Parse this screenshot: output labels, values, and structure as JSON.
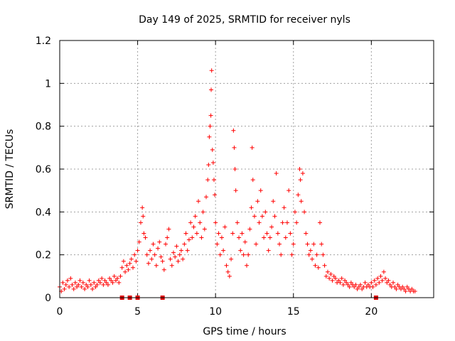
{
  "chart_data": {
    "type": "scatter",
    "title": "Day 149 of 2025, SRMTID for receiver nyls",
    "xlabel": "GPS time / hours",
    "ylabel": "SRMTID / TECUs",
    "xlim": [
      0,
      24
    ],
    "ylim": [
      0,
      1.2
    ],
    "xticks": [
      0,
      5,
      10,
      15,
      20
    ],
    "xtick_labels": [
      "0",
      "5",
      "10",
      "15",
      "20"
    ],
    "yticks": [
      0,
      0.2,
      0.4,
      0.6,
      0.8,
      1.0,
      1.2
    ],
    "ytick_labels": [
      "0",
      "0.2",
      "0.4",
      "0.6",
      "0.8",
      "1",
      "1.2"
    ],
    "grid": true,
    "marker": "plus",
    "color": "#ff0000",
    "series": [
      {
        "name": "SRMTID",
        "points": [
          [
            0.0,
            0.05
          ],
          [
            0.1,
            0.03
          ],
          [
            0.2,
            0.07
          ],
          [
            0.3,
            0.04
          ],
          [
            0.4,
            0.06
          ],
          [
            0.5,
            0.08
          ],
          [
            0.6,
            0.05
          ],
          [
            0.7,
            0.09
          ],
          [
            0.8,
            0.06
          ],
          [
            0.9,
            0.04
          ],
          [
            1.0,
            0.07
          ],
          [
            1.1,
            0.05
          ],
          [
            1.2,
            0.06
          ],
          [
            1.3,
            0.08
          ],
          [
            1.4,
            0.05
          ],
          [
            1.5,
            0.07
          ],
          [
            1.6,
            0.04
          ],
          [
            1.7,
            0.06
          ],
          [
            1.8,
            0.05
          ],
          [
            1.9,
            0.08
          ],
          [
            2.0,
            0.06
          ],
          [
            2.1,
            0.04
          ],
          [
            2.2,
            0.07
          ],
          [
            2.3,
            0.05
          ],
          [
            2.4,
            0.06
          ],
          [
            2.5,
            0.08
          ],
          [
            2.6,
            0.07
          ],
          [
            2.7,
            0.09
          ],
          [
            2.8,
            0.06
          ],
          [
            2.9,
            0.08
          ],
          [
            3.0,
            0.07
          ],
          [
            3.1,
            0.06
          ],
          [
            3.2,
            0.09
          ],
          [
            3.3,
            0.08
          ],
          [
            3.4,
            0.07
          ],
          [
            3.5,
            0.1
          ],
          [
            3.6,
            0.08
          ],
          [
            3.7,
            0.09
          ],
          [
            3.8,
            0.07
          ],
          [
            3.9,
            0.1
          ],
          [
            4.0,
            0.14
          ],
          [
            4.1,
            0.17
          ],
          [
            4.2,
            0.12
          ],
          [
            4.3,
            0.15
          ],
          [
            4.4,
            0.13
          ],
          [
            4.5,
            0.16
          ],
          [
            4.6,
            0.18
          ],
          [
            4.7,
            0.14
          ],
          [
            4.8,
            0.2
          ],
          [
            4.9,
            0.17
          ],
          [
            5.0,
            0.22
          ],
          [
            5.1,
            0.26
          ],
          [
            5.2,
            0.35
          ],
          [
            5.3,
            0.42
          ],
          [
            5.35,
            0.38
          ],
          [
            5.4,
            0.3
          ],
          [
            5.5,
            0.28
          ],
          [
            5.6,
            0.2
          ],
          [
            5.7,
            0.16
          ],
          [
            5.8,
            0.22
          ],
          [
            5.9,
            0.18
          ],
          [
            6.0,
            0.25
          ],
          [
            6.1,
            0.2
          ],
          [
            6.2,
            0.15
          ],
          [
            6.3,
            0.23
          ],
          [
            6.4,
            0.26
          ],
          [
            6.5,
            0.19
          ],
          [
            6.6,
            0.17
          ],
          [
            6.7,
            0.13
          ],
          [
            6.8,
            0.25
          ],
          [
            6.9,
            0.28
          ],
          [
            7.0,
            0.32
          ],
          [
            7.1,
            0.18
          ],
          [
            7.2,
            0.15
          ],
          [
            7.3,
            0.21
          ],
          [
            7.4,
            0.19
          ],
          [
            7.5,
            0.24
          ],
          [
            7.6,
            0.17
          ],
          [
            7.7,
            0.2
          ],
          [
            7.8,
            0.22
          ],
          [
            7.9,
            0.18
          ],
          [
            8.0,
            0.25
          ],
          [
            8.1,
            0.3
          ],
          [
            8.2,
            0.22
          ],
          [
            8.3,
            0.27
          ],
          [
            8.4,
            0.35
          ],
          [
            8.5,
            0.28
          ],
          [
            8.6,
            0.33
          ],
          [
            8.7,
            0.38
          ],
          [
            8.8,
            0.3
          ],
          [
            8.9,
            0.45
          ],
          [
            9.0,
            0.35
          ],
          [
            9.1,
            0.28
          ],
          [
            9.2,
            0.4
          ],
          [
            9.3,
            0.32
          ],
          [
            9.4,
            0.47
          ],
          [
            9.5,
            0.55
          ],
          [
            9.55,
            0.62
          ],
          [
            9.6,
            0.75
          ],
          [
            9.65,
            0.8
          ],
          [
            9.7,
            0.85
          ],
          [
            9.72,
            0.97
          ],
          [
            9.75,
            1.06
          ],
          [
            9.8,
            0.69
          ],
          [
            9.85,
            0.63
          ],
          [
            9.9,
            0.55
          ],
          [
            9.95,
            0.48
          ],
          [
            10.0,
            0.35
          ],
          [
            10.1,
            0.25
          ],
          [
            10.2,
            0.3
          ],
          [
            10.3,
            0.2
          ],
          [
            10.4,
            0.28
          ],
          [
            10.5,
            0.22
          ],
          [
            10.6,
            0.33
          ],
          [
            10.7,
            0.15
          ],
          [
            10.8,
            0.12
          ],
          [
            10.9,
            0.1
          ],
          [
            11.0,
            0.18
          ],
          [
            11.1,
            0.3
          ],
          [
            11.15,
            0.78
          ],
          [
            11.2,
            0.7
          ],
          [
            11.25,
            0.6
          ],
          [
            11.3,
            0.5
          ],
          [
            11.4,
            0.35
          ],
          [
            11.5,
            0.28
          ],
          [
            11.6,
            0.22
          ],
          [
            11.7,
            0.3
          ],
          [
            11.8,
            0.2
          ],
          [
            11.9,
            0.26
          ],
          [
            12.0,
            0.15
          ],
          [
            12.1,
            0.2
          ],
          [
            12.2,
            0.32
          ],
          [
            12.3,
            0.42
          ],
          [
            12.35,
            0.7
          ],
          [
            12.4,
            0.55
          ],
          [
            12.5,
            0.38
          ],
          [
            12.6,
            0.25
          ],
          [
            12.7,
            0.45
          ],
          [
            12.8,
            0.35
          ],
          [
            12.9,
            0.5
          ],
          [
            13.0,
            0.38
          ],
          [
            13.1,
            0.28
          ],
          [
            13.2,
            0.4
          ],
          [
            13.3,
            0.3
          ],
          [
            13.4,
            0.22
          ],
          [
            13.5,
            0.28
          ],
          [
            13.6,
            0.33
          ],
          [
            13.7,
            0.45
          ],
          [
            13.8,
            0.38
          ],
          [
            13.9,
            0.58
          ],
          [
            14.0,
            0.3
          ],
          [
            14.1,
            0.25
          ],
          [
            14.2,
            0.2
          ],
          [
            14.3,
            0.35
          ],
          [
            14.4,
            0.42
          ],
          [
            14.5,
            0.28
          ],
          [
            14.6,
            0.35
          ],
          [
            14.7,
            0.5
          ],
          [
            14.8,
            0.3
          ],
          [
            14.9,
            0.2
          ],
          [
            15.0,
            0.25
          ],
          [
            15.1,
            0.4
          ],
          [
            15.2,
            0.35
          ],
          [
            15.3,
            0.48
          ],
          [
            15.4,
            0.6
          ],
          [
            15.45,
            0.55
          ],
          [
            15.5,
            0.45
          ],
          [
            15.6,
            0.58
          ],
          [
            15.7,
            0.4
          ],
          [
            15.8,
            0.3
          ],
          [
            15.9,
            0.25
          ],
          [
            16.0,
            0.2
          ],
          [
            16.1,
            0.22
          ],
          [
            16.2,
            0.18
          ],
          [
            16.3,
            0.25
          ],
          [
            16.4,
            0.15
          ],
          [
            16.5,
            0.2
          ],
          [
            16.6,
            0.14
          ],
          [
            16.7,
            0.35
          ],
          [
            16.8,
            0.25
          ],
          [
            16.9,
            0.2
          ],
          [
            17.0,
            0.15
          ],
          [
            17.1,
            0.1
          ],
          [
            17.2,
            0.12
          ],
          [
            17.3,
            0.09
          ],
          [
            17.4,
            0.11
          ],
          [
            17.5,
            0.08
          ],
          [
            17.6,
            0.1
          ],
          [
            17.7,
            0.09
          ],
          [
            17.8,
            0.07
          ],
          [
            17.9,
            0.08
          ],
          [
            18.0,
            0.07
          ],
          [
            18.1,
            0.09
          ],
          [
            18.2,
            0.06
          ],
          [
            18.3,
            0.08
          ],
          [
            18.4,
            0.07
          ],
          [
            18.5,
            0.06
          ],
          [
            18.6,
            0.05
          ],
          [
            18.7,
            0.07
          ],
          [
            18.8,
            0.06
          ],
          [
            18.9,
            0.05
          ],
          [
            19.0,
            0.06
          ],
          [
            19.1,
            0.04
          ],
          [
            19.2,
            0.05
          ],
          [
            19.3,
            0.06
          ],
          [
            19.4,
            0.04
          ],
          [
            19.5,
            0.05
          ],
          [
            19.6,
            0.07
          ],
          [
            19.7,
            0.05
          ],
          [
            19.8,
            0.06
          ],
          [
            19.9,
            0.05
          ],
          [
            20.0,
            0.07
          ],
          [
            20.1,
            0.05
          ],
          [
            20.2,
            0.08
          ],
          [
            20.3,
            0.06
          ],
          [
            20.4,
            0.09
          ],
          [
            20.5,
            0.07
          ],
          [
            20.6,
            0.1
          ],
          [
            20.7,
            0.08
          ],
          [
            20.8,
            0.12
          ],
          [
            20.9,
            0.09
          ],
          [
            21.0,
            0.07
          ],
          [
            21.1,
            0.08
          ],
          [
            21.2,
            0.06
          ],
          [
            21.3,
            0.05
          ],
          [
            21.4,
            0.07
          ],
          [
            21.5,
            0.05
          ],
          [
            21.6,
            0.04
          ],
          [
            21.7,
            0.06
          ],
          [
            21.8,
            0.05
          ],
          [
            21.9,
            0.04
          ],
          [
            22.0,
            0.05
          ],
          [
            22.1,
            0.04
          ],
          [
            22.2,
            0.03
          ],
          [
            22.3,
            0.05
          ],
          [
            22.4,
            0.04
          ],
          [
            22.5,
            0.03
          ],
          [
            22.6,
            0.04
          ],
          [
            22.7,
            0.03
          ],
          [
            22.8,
            0.03
          ]
        ]
      }
    ],
    "baseline_markers": [
      4.0,
      4.5,
      5.0,
      6.6,
      20.3
    ]
  }
}
